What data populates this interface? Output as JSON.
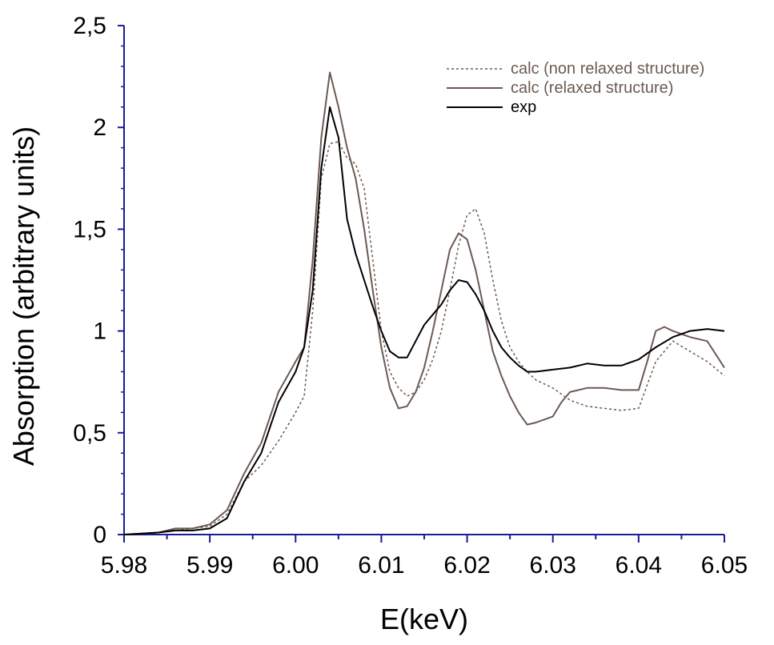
{
  "chart_data": {
    "type": "line",
    "title": "",
    "xlabel": "E(keV)",
    "ylabel": "Absorption (arbitrary units)",
    "xlim": [
      5.98,
      6.05
    ],
    "ylim": [
      0,
      2.5
    ],
    "x_ticks": [
      "5.98",
      "5.99",
      "6.00",
      "6.01",
      "6.02",
      "6.03",
      "6.04",
      "6.05"
    ],
    "y_ticks": [
      "0",
      "0,5",
      "1",
      "1,5",
      "2",
      "2,5"
    ],
    "legend_position": "top-right",
    "axis_color": "#1a1a9a",
    "series": [
      {
        "name": "calc (non relaxed structure)",
        "color": "#6b5a52",
        "dash": "dotted",
        "x": [
          5.98,
          5.984,
          5.986,
          5.988,
          5.99,
          5.992,
          5.994,
          5.996,
          5.998,
          6.0,
          6.001,
          6.002,
          6.003,
          6.004,
          6.005,
          6.006,
          6.007,
          6.008,
          6.009,
          6.01,
          6.011,
          6.012,
          6.013,
          6.014,
          6.015,
          6.016,
          6.017,
          6.018,
          6.019,
          6.02,
          6.021,
          6.022,
          6.023,
          6.024,
          6.025,
          6.026,
          6.027,
          6.028,
          6.03,
          6.032,
          6.034,
          6.036,
          6.038,
          6.04,
          6.042,
          6.044,
          6.046,
          6.048,
          6.05
        ],
        "y": [
          0.0,
          0.01,
          0.02,
          0.03,
          0.04,
          0.1,
          0.26,
          0.34,
          0.46,
          0.6,
          0.68,
          1.1,
          1.75,
          1.92,
          1.93,
          1.85,
          1.82,
          1.7,
          1.35,
          1.0,
          0.8,
          0.72,
          0.68,
          0.7,
          0.76,
          0.86,
          1.0,
          1.2,
          1.42,
          1.57,
          1.6,
          1.48,
          1.25,
          1.05,
          0.92,
          0.85,
          0.8,
          0.76,
          0.72,
          0.66,
          0.63,
          0.62,
          0.61,
          0.62,
          0.85,
          0.95,
          0.9,
          0.85,
          0.78
        ]
      },
      {
        "name": "calc (relaxed structure)",
        "color": "#6b5a52",
        "dash": "solid",
        "x": [
          5.98,
          5.984,
          5.986,
          5.988,
          5.99,
          5.992,
          5.994,
          5.996,
          5.998,
          6.0,
          6.001,
          6.002,
          6.003,
          6.004,
          6.005,
          6.006,
          6.007,
          6.008,
          6.009,
          6.01,
          6.011,
          6.012,
          6.013,
          6.014,
          6.015,
          6.016,
          6.017,
          6.018,
          6.019,
          6.02,
          6.021,
          6.022,
          6.023,
          6.024,
          6.025,
          6.026,
          6.027,
          6.028,
          6.03,
          6.031,
          6.032,
          6.034,
          6.036,
          6.038,
          6.04,
          6.041,
          6.042,
          6.043,
          6.044,
          6.046,
          6.048,
          6.05
        ],
        "y": [
          0.0,
          0.01,
          0.03,
          0.03,
          0.05,
          0.12,
          0.3,
          0.45,
          0.7,
          0.85,
          0.92,
          1.35,
          1.95,
          2.27,
          2.1,
          1.9,
          1.75,
          1.5,
          1.2,
          0.92,
          0.72,
          0.62,
          0.63,
          0.7,
          0.82,
          1.0,
          1.2,
          1.4,
          1.48,
          1.45,
          1.3,
          1.1,
          0.9,
          0.78,
          0.68,
          0.6,
          0.54,
          0.55,
          0.58,
          0.65,
          0.7,
          0.72,
          0.72,
          0.71,
          0.71,
          0.85,
          1.0,
          1.02,
          1.0,
          0.97,
          0.95,
          0.82
        ]
      },
      {
        "name": "exp",
        "color": "#000000",
        "dash": "solid",
        "x": [
          5.98,
          5.984,
          5.986,
          5.988,
          5.99,
          5.992,
          5.994,
          5.996,
          5.998,
          6.0,
          6.001,
          6.002,
          6.003,
          6.004,
          6.005,
          6.006,
          6.007,
          6.008,
          6.009,
          6.01,
          6.011,
          6.012,
          6.013,
          6.014,
          6.015,
          6.016,
          6.017,
          6.018,
          6.019,
          6.02,
          6.021,
          6.022,
          6.023,
          6.024,
          6.025,
          6.026,
          6.027,
          6.028,
          6.03,
          6.032,
          6.034,
          6.036,
          6.038,
          6.04,
          6.042,
          6.044,
          6.046,
          6.048,
          6.05
        ],
        "y": [
          0.0,
          0.01,
          0.02,
          0.02,
          0.03,
          0.08,
          0.26,
          0.4,
          0.65,
          0.8,
          0.92,
          1.2,
          1.8,
          2.1,
          1.95,
          1.55,
          1.38,
          1.25,
          1.12,
          1.0,
          0.9,
          0.87,
          0.87,
          0.95,
          1.03,
          1.08,
          1.13,
          1.2,
          1.25,
          1.24,
          1.18,
          1.1,
          1.0,
          0.92,
          0.87,
          0.83,
          0.8,
          0.8,
          0.81,
          0.82,
          0.84,
          0.83,
          0.83,
          0.86,
          0.92,
          0.97,
          1.0,
          1.01,
          1.0
        ]
      }
    ]
  }
}
